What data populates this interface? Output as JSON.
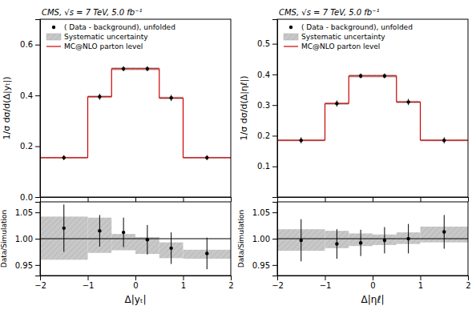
{
  "chart_data": [
    {
      "type": "histogram",
      "title": "CMS, √s = 7 TeV, 5.0 fb⁻¹",
      "y_label": "1/σ dσ/d(Δ|yₜ|)",
      "xlim": [
        -2,
        2
      ],
      "xticks": [
        -2,
        -1,
        0,
        1,
        2
      ],
      "ylim": [
        0,
        0.7
      ],
      "yticks": [
        {
          "value": 0,
          "label": "0.0"
        },
        0.2,
        0.4,
        0.6
      ],
      "tick_labels": "y",
      "grid": false,
      "legend": "upper left",
      "series": [
        {
          "name": "( Data - background), unfolded",
          "type": "errorbar",
          "marker": "circle",
          "color": "#000000",
          "x": [
            -1.5,
            -0.75,
            -0.25,
            0.25,
            0.75,
            1.5
          ],
          "values": [
            0.155,
            0.395,
            0.505,
            0.505,
            0.39,
            0.155
          ],
          "errors": [
            0.01,
            0.012,
            0.01,
            0.01,
            0.012,
            0.01
          ]
        },
        {
          "name": "Systematic uncertainty",
          "type": "band",
          "color": "#c8c8c8",
          "bins": [
            -2,
            -1,
            -0.5,
            0,
            0.5,
            1,
            2
          ],
          "lower": [
            0.152,
            0.39,
            0.499,
            0.499,
            0.385,
            0.152
          ],
          "upper": [
            0.158,
            0.4,
            0.511,
            0.511,
            0.395,
            0.158
          ]
        },
        {
          "name": "MC@NLO parton level",
          "type": "step",
          "color": "#cc0000",
          "bins": [
            -2,
            -1,
            -0.5,
            0,
            0.5,
            1,
            2
          ],
          "values": [
            0.155,
            0.395,
            0.505,
            0.505,
            0.39,
            0.155
          ]
        }
      ]
    },
    {
      "type": "ratio",
      "x_label": "Δ|yₜ|",
      "y_label": "Data/Simulation",
      "xlim": [
        -2,
        2
      ],
      "xticks": [
        {
          "value": -2,
          "label": "−2"
        },
        {
          "value": -1,
          "label": "−1"
        },
        0,
        1,
        2
      ],
      "ylim": [
        0.93,
        1.07
      ],
      "yticks": [
        0.95,
        {
          "value": 1.0,
          "label": "1.00"
        },
        1.05
      ],
      "grid": false,
      "reference_line": 1.0,
      "series": [
        {
          "type": "band",
          "color": "#c8c8c8",
          "bins": [
            -2,
            -1,
            -0.5,
            0,
            0.5,
            1,
            2
          ],
          "lower": [
            0.96,
            0.973,
            0.978,
            0.971,
            0.963,
            0.962
          ],
          "upper": [
            1.042,
            1.04,
            1.009,
            1.003,
            0.993,
            0.979
          ]
        },
        {
          "type": "errorbar",
          "marker": "circle",
          "color": "#000000",
          "x": [
            -1.5,
            -0.75,
            -0.25,
            0.25,
            0.75,
            1.5
          ],
          "values": [
            1.02,
            1.015,
            1.012,
            0.998,
            0.982,
            0.972
          ],
          "errors": [
            0.045,
            0.03,
            0.028,
            0.028,
            0.03,
            0.03
          ]
        }
      ]
    },
    {
      "type": "histogram",
      "title": "CMS, √s = 7 TeV, 5.0 fb⁻¹",
      "y_label": "1/σ dσ/d(Δ|ηℓ|)",
      "xlim": [
        -2,
        2
      ],
      "xticks": [
        -2,
        -1,
        0,
        1,
        2
      ],
      "ylim": [
        0,
        0.58
      ],
      "yticks": [
        0.1,
        0.2,
        0.3,
        0.4,
        0.5
      ],
      "tick_labels": "y",
      "grid": false,
      "legend": "upper left",
      "series": [
        {
          "name": "( Data - background), unfolded",
          "type": "errorbar",
          "marker": "circle",
          "color": "#000000",
          "x": [
            -1.5,
            -0.75,
            -0.25,
            0.25,
            0.75,
            1.5
          ],
          "values": [
            0.185,
            0.305,
            0.395,
            0.395,
            0.31,
            0.185
          ],
          "errors": [
            0.01,
            0.01,
            0.008,
            0.008,
            0.01,
            0.01
          ]
        },
        {
          "name": "Systematic uncertainty",
          "type": "band",
          "color": "#c8c8c8",
          "bins": [
            -2,
            -1,
            -0.5,
            0,
            0.5,
            1,
            2
          ],
          "lower": [
            0.182,
            0.301,
            0.39,
            0.39,
            0.306,
            0.182
          ],
          "upper": [
            0.188,
            0.309,
            0.4,
            0.4,
            0.314,
            0.188
          ]
        },
        {
          "name": "MC@NLO parton level",
          "type": "step",
          "color": "#cc0000",
          "bins": [
            -2,
            -1,
            -0.5,
            0,
            0.5,
            1,
            2
          ],
          "values": [
            0.185,
            0.305,
            0.395,
            0.395,
            0.31,
            0.185
          ]
        }
      ]
    },
    {
      "type": "ratio",
      "x_label": "Δ|ηℓ|",
      "y_label": "Data/Simulation",
      "xlim": [
        -2,
        2
      ],
      "xticks": [
        {
          "value": -2,
          "label": "−2"
        },
        {
          "value": -1,
          "label": "−1"
        },
        0,
        1,
        2
      ],
      "ylim": [
        0.93,
        1.07
      ],
      "yticks": [
        0.95,
        {
          "value": 1.0,
          "label": "1.00"
        },
        1.05
      ],
      "grid": false,
      "reference_line": 1.0,
      "series": [
        {
          "type": "band",
          "color": "#c8c8c8",
          "bins": [
            -2,
            -1,
            -0.5,
            0,
            0.5,
            1,
            2
          ],
          "lower": [
            0.977,
            0.982,
            0.986,
            0.988,
            0.99,
            0.993
          ],
          "upper": [
            1.018,
            1.015,
            1.01,
            1.008,
            1.012,
            1.023
          ]
        },
        {
          "type": "errorbar",
          "marker": "circle",
          "color": "#000000",
          "x": [
            -1.5,
            -0.75,
            -0.25,
            0.25,
            0.75,
            1.5
          ],
          "values": [
            0.997,
            0.99,
            0.992,
            0.997,
            1.0,
            1.013
          ],
          "errors": [
            0.04,
            0.028,
            0.025,
            0.025,
            0.028,
            0.032
          ]
        }
      ]
    }
  ]
}
